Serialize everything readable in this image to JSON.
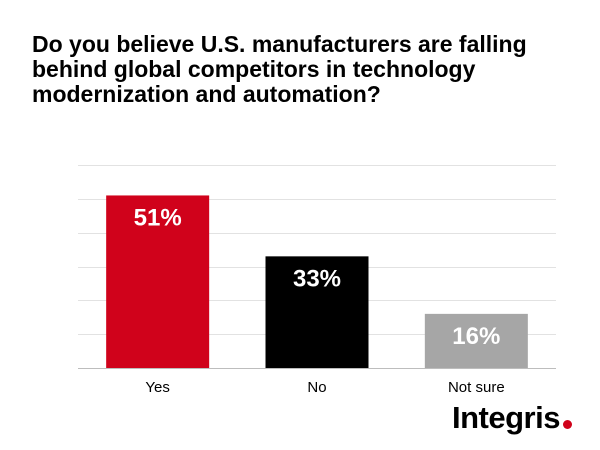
{
  "title": "Do you believe U.S. manufacturers are falling behind global competitors in technology modernization and automation?",
  "brand": {
    "name": "Integris",
    "dot_color": "#d0021b"
  },
  "chart_data": {
    "type": "bar",
    "categories": [
      "Yes",
      "No",
      "Not sure"
    ],
    "values": [
      51,
      33,
      16
    ],
    "value_labels": [
      "51%",
      "33%",
      "16%"
    ],
    "bar_colors": [
      "#d0021b",
      "#000000",
      "#a6a6a6"
    ],
    "ylim": [
      0,
      60
    ],
    "grid": true,
    "legend": "none",
    "xlabel": "",
    "ylabel": ""
  }
}
